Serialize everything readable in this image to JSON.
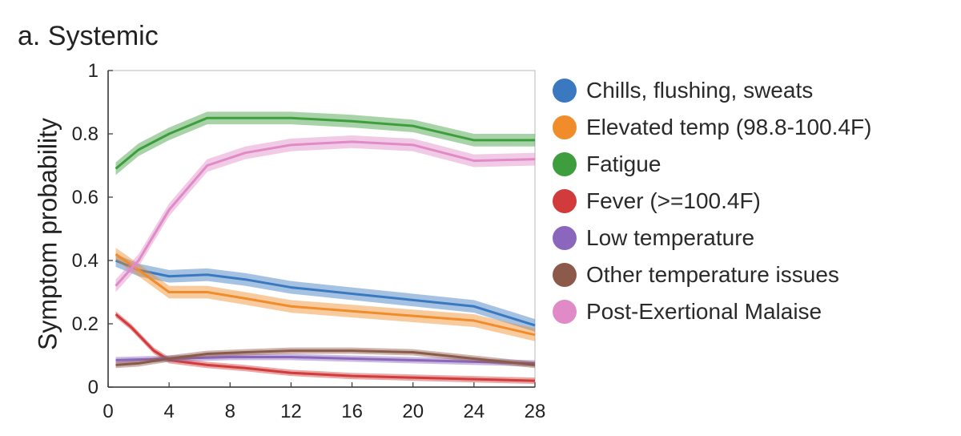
{
  "chart_data": {
    "type": "line",
    "title": "a. Systemic",
    "xlabel": "",
    "ylabel": "Symptom probability",
    "xlim": [
      0,
      28
    ],
    "ylim": [
      0,
      1
    ],
    "x_ticks": [
      "0",
      "4",
      "8",
      "12",
      "16",
      "20",
      "24",
      "28"
    ],
    "y_ticks": [
      "0",
      "0.2",
      "0.4",
      "0.6",
      "0.8",
      "1"
    ],
    "legend_position": "right",
    "grid": false,
    "series": [
      {
        "name": "Chills, flushing, sweats",
        "color": "#3a78c0",
        "x": [
          0.5,
          2,
          4,
          6.5,
          9,
          12,
          16,
          20,
          24,
          28
        ],
        "y": [
          0.4,
          0.37,
          0.35,
          0.355,
          0.34,
          0.315,
          0.295,
          0.275,
          0.255,
          0.195
        ],
        "band": 0.02
      },
      {
        "name": "Elevated temp (98.8-100.4F)",
        "color": "#f08c2a",
        "x": [
          0.5,
          2,
          4,
          6.5,
          9,
          12,
          16,
          20,
          24,
          28
        ],
        "y": [
          0.42,
          0.37,
          0.3,
          0.3,
          0.28,
          0.255,
          0.24,
          0.225,
          0.21,
          0.165
        ],
        "band": 0.02
      },
      {
        "name": "Fatigue",
        "color": "#3e9e3e",
        "x": [
          0.5,
          2,
          4,
          6.5,
          9,
          12,
          16,
          20,
          24,
          28
        ],
        "y": [
          0.69,
          0.75,
          0.8,
          0.85,
          0.85,
          0.85,
          0.84,
          0.825,
          0.78,
          0.78
        ],
        "band": 0.02
      },
      {
        "name": "Fever (>=100.4F)",
        "color": "#d13b3b",
        "x": [
          0.5,
          1.5,
          3,
          4,
          6.5,
          9,
          12,
          16,
          20,
          24,
          28
        ],
        "y": [
          0.23,
          0.19,
          0.115,
          0.085,
          0.07,
          0.06,
          0.045,
          0.035,
          0.03,
          0.025,
          0.02
        ],
        "band": 0.01
      },
      {
        "name": "Low temperature",
        "color": "#8a66bd",
        "x": [
          0.5,
          4,
          8,
          12,
          16,
          20,
          24,
          28
        ],
        "y": [
          0.085,
          0.09,
          0.095,
          0.095,
          0.09,
          0.085,
          0.08,
          0.075
        ],
        "band": 0.01
      },
      {
        "name": "Other temperature issues",
        "color": "#8b5a4a",
        "x": [
          0.5,
          2,
          4,
          6.5,
          9,
          12,
          16,
          20,
          24,
          28
        ],
        "y": [
          0.07,
          0.075,
          0.09,
          0.105,
          0.11,
          0.115,
          0.115,
          0.11,
          0.09,
          0.07
        ],
        "band": 0.01
      },
      {
        "name": "Post-Exertional Malaise",
        "color": "#e08ac8",
        "x": [
          0.5,
          2,
          4,
          6.5,
          9,
          12,
          16,
          20,
          24,
          28
        ],
        "y": [
          0.32,
          0.4,
          0.56,
          0.7,
          0.74,
          0.765,
          0.775,
          0.765,
          0.715,
          0.72
        ],
        "band": 0.02
      }
    ]
  }
}
